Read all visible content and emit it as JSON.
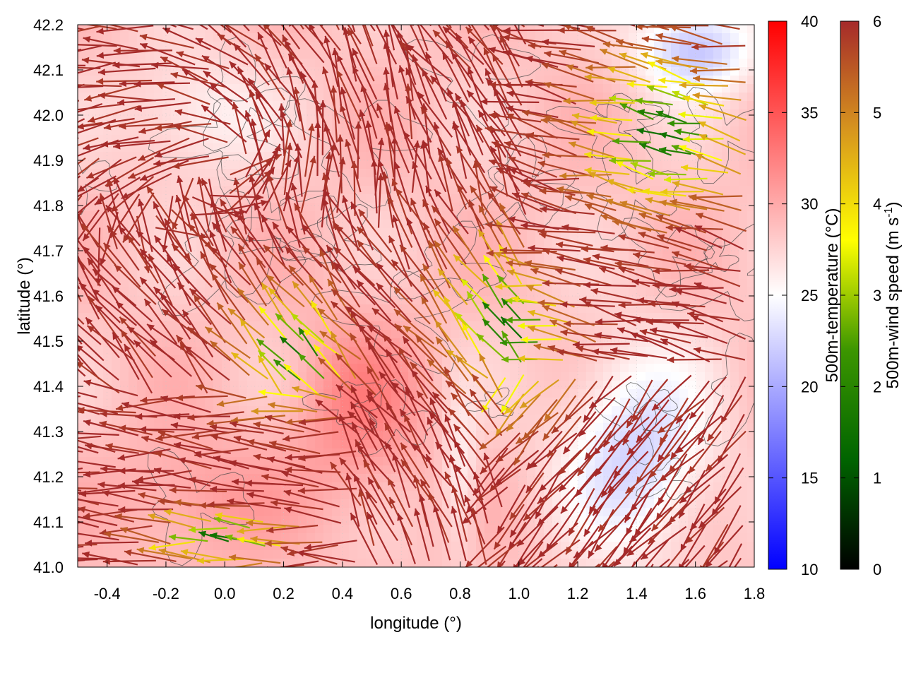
{
  "chart_data": {
    "type": "vector-field",
    "xlabel": "longitude (°)",
    "ylabel": "latitude (°)",
    "xlim": [
      -0.5,
      1.8
    ],
    "ylim": [
      41.0,
      42.2
    ],
    "xticks": [
      "-0.4",
      "-0.2",
      "0.0",
      "0.2",
      "0.4",
      "0.6",
      "0.8",
      "1.0",
      "1.2",
      "1.4",
      "1.6",
      "1.8"
    ],
    "yticks": [
      "41.0",
      "41.1",
      "41.2",
      "41.3",
      "41.4",
      "41.5",
      "41.6",
      "41.7",
      "41.8",
      "41.9",
      "42.0",
      "42.1",
      "42.2"
    ],
    "grid": true,
    "background_field": "500m-temperature",
    "vectors_field": "500m-wind speed",
    "colorbars": [
      {
        "label": "500m-temperature (°C)",
        "min": 10,
        "max": 40,
        "ticks": [
          "10",
          "15",
          "20",
          "25",
          "30",
          "35",
          "40"
        ],
        "colors": [
          "#0000ff",
          "#ffffff",
          "#ff0000"
        ]
      },
      {
        "label": "500m-wind speed (m s",
        "label_sup": "-1",
        "label_close": ")",
        "min": 0,
        "max": 6,
        "ticks": [
          "0",
          "1",
          "2",
          "3",
          "4",
          "5",
          "6"
        ],
        "colors": [
          "#000000",
          "#006400",
          "#3c9600",
          "#ffff00",
          "#d7961e",
          "#a52a2a"
        ]
      }
    ]
  }
}
